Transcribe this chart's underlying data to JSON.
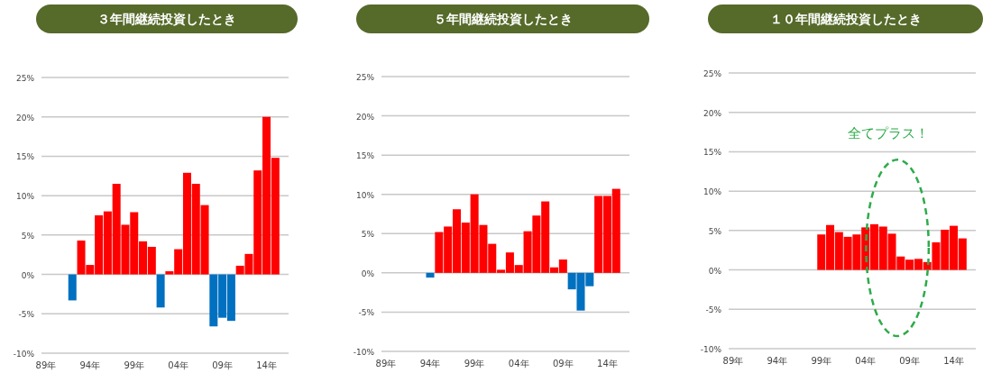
{
  "chart_data": [
    {
      "type": "bar",
      "title": "３年間継続投資したとき",
      "categories": [
        "89年",
        null,
        null,
        null,
        null,
        "94年",
        null,
        null,
        null,
        null,
        "99年",
        null,
        null,
        null,
        null,
        "04年",
        null,
        null,
        null,
        null,
        "09年",
        null,
        null,
        null,
        null,
        "14年",
        null,
        null
      ],
      "values": [
        null,
        null,
        null,
        -3.3,
        4.3,
        1.2,
        7.5,
        8.0,
        11.5,
        6.3,
        7.9,
        4.2,
        3.5,
        -4.2,
        0.4,
        3.2,
        12.9,
        11.5,
        8.8,
        -6.6,
        -5.5,
        -5.9,
        1.1,
        2.6,
        13.2,
        20.0,
        14.8,
        null
      ],
      "colors": [
        null,
        null,
        null,
        "#0070c0",
        "#ff0000",
        "#ff0000",
        "#ff0000",
        "#ff0000",
        "#ff0000",
        "#ff0000",
        "#ff0000",
        "#ff0000",
        "#ff0000",
        "#0070c0",
        "#ff0000",
        "#ff0000",
        "#ff0000",
        "#ff0000",
        "#ff0000",
        "#0070c0",
        "#0070c0",
        "#0070c0",
        "#ff0000",
        "#ff0000",
        "#ff0000",
        "#ff0000",
        "#ff0000",
        null
      ],
      "ylim": [
        -10,
        25
      ],
      "yticks": [
        {
          "value": -10,
          "label": "-10%"
        },
        {
          "value": -5,
          "label": "-5%"
        },
        {
          "value": 0,
          "label": "0%"
        },
        {
          "value": 5,
          "label": "5%"
        },
        {
          "value": 10,
          "label": "10%"
        },
        {
          "value": 15,
          "label": "15%"
        },
        {
          "value": 20,
          "label": "20%"
        },
        {
          "value": 25,
          "label": "25%"
        }
      ],
      "grid": "y"
    },
    {
      "type": "bar",
      "title": "５年間継続投資したとき",
      "categories": [
        "89年",
        null,
        null,
        null,
        null,
        "94年",
        null,
        null,
        null,
        null,
        "99年",
        null,
        null,
        null,
        null,
        "04年",
        null,
        null,
        null,
        null,
        "09年",
        null,
        null,
        null,
        null,
        "14年",
        null,
        null
      ],
      "values": [
        null,
        null,
        null,
        null,
        null,
        -0.6,
        5.2,
        5.9,
        8.1,
        6.4,
        10.0,
        6.1,
        3.7,
        0.4,
        2.6,
        1.0,
        5.3,
        7.3,
        9.1,
        0.7,
        1.7,
        -2.1,
        -4.8,
        -1.7,
        9.8,
        9.8,
        10.7,
        null
      ],
      "colors": [
        null,
        null,
        null,
        null,
        null,
        "#0070c0",
        "#ff0000",
        "#ff0000",
        "#ff0000",
        "#ff0000",
        "#ff0000",
        "#ff0000",
        "#ff0000",
        "#ff0000",
        "#ff0000",
        "#ff0000",
        "#ff0000",
        "#ff0000",
        "#ff0000",
        "#ff0000",
        "#ff0000",
        "#0070c0",
        "#0070c0",
        "#0070c0",
        "#ff0000",
        "#ff0000",
        "#ff0000",
        null
      ],
      "ylim": [
        -10,
        25
      ],
      "yticks": [
        {
          "value": -10,
          "label": "-10%"
        },
        {
          "value": -5,
          "label": "-5%"
        },
        {
          "value": 0,
          "label": "0%"
        },
        {
          "value": 5,
          "label": "5%"
        },
        {
          "value": 10,
          "label": "10%"
        },
        {
          "value": 15,
          "label": "15%"
        },
        {
          "value": 20,
          "label": "20%"
        },
        {
          "value": 25,
          "label": "25%"
        }
      ],
      "grid": "y"
    },
    {
      "type": "bar",
      "title": "１０年間継続投資したとき",
      "categories": [
        "89年",
        null,
        null,
        null,
        null,
        "94年",
        null,
        null,
        null,
        null,
        "99年",
        null,
        null,
        null,
        null,
        "04年",
        null,
        null,
        null,
        null,
        "09年",
        null,
        null,
        null,
        null,
        "14年",
        null,
        null
      ],
      "values": [
        null,
        null,
        null,
        null,
        null,
        null,
        null,
        null,
        null,
        null,
        4.5,
        5.7,
        4.8,
        4.2,
        4.5,
        5.4,
        5.8,
        5.5,
        4.6,
        1.7,
        1.3,
        1.4,
        1.0,
        3.5,
        5.1,
        5.6,
        4.0,
        null
      ],
      "colors": [
        null,
        null,
        null,
        null,
        null,
        null,
        null,
        null,
        null,
        null,
        "#ff0000",
        "#ff0000",
        "#ff0000",
        "#ff0000",
        "#ff0000",
        "#ff0000",
        "#ff0000",
        "#ff0000",
        "#ff0000",
        "#ff0000",
        "#ff0000",
        "#ff0000",
        "#ff0000",
        "#ff0000",
        "#ff0000",
        "#ff0000",
        "#ff0000",
        null
      ],
      "ylim": [
        -10,
        25
      ],
      "yticks": [
        {
          "value": -10,
          "label": "-10%"
        },
        {
          "value": -5,
          "label": "-5%"
        },
        {
          "value": 0,
          "label": "0%"
        },
        {
          "value": 5,
          "label": "5%"
        },
        {
          "value": 10,
          "label": "10%"
        },
        {
          "value": 15,
          "label": "15%"
        },
        {
          "value": 20,
          "label": "20%"
        },
        {
          "value": 25,
          "label": "25%"
        }
      ],
      "grid": "y",
      "annotations": [
        "全てプラス！"
      ]
    }
  ]
}
